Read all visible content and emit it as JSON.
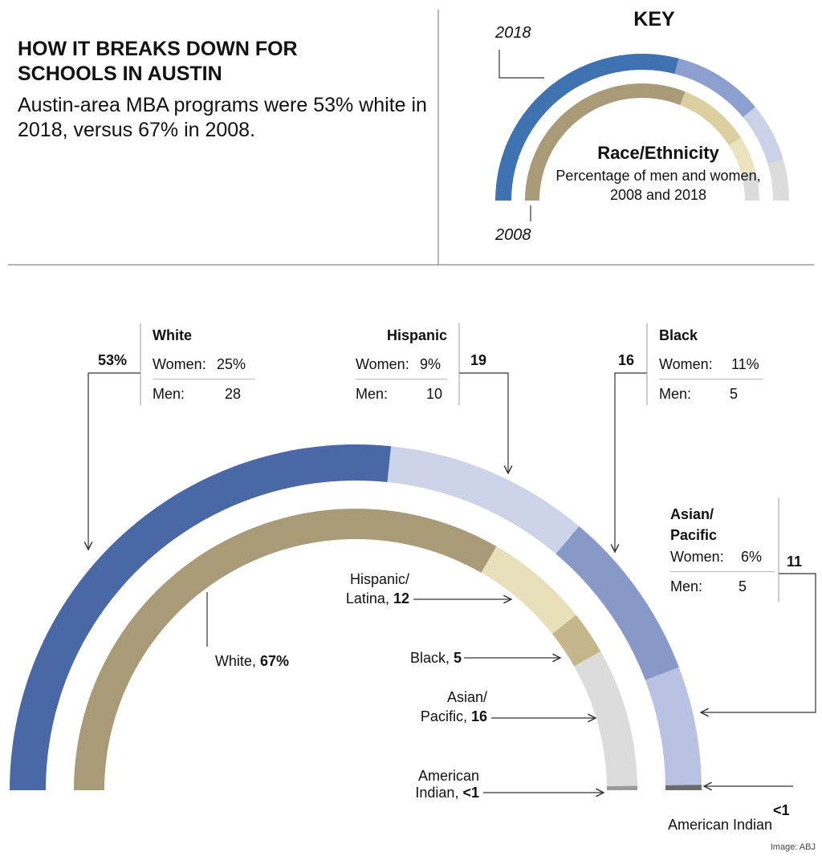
{
  "header": {
    "title": "HOW IT BREAKS DOWN FOR SCHOOLS IN AUSTIN",
    "subtitle": "Austin-area MBA programs were 53% white in 2018, versus 67% in 2008."
  },
  "key": {
    "title": "KEY",
    "heading": "Race/Ethnicity",
    "description": "Percentage of men and women, 2008 and 2018"
  },
  "chart_data": {
    "type": "semi-donut",
    "series": [
      {
        "name": "2018",
        "categories": [
          "White",
          "Hispanic",
          "Black",
          "Asian/ Pacific",
          "American Indian"
        ],
        "values": [
          53,
          19,
          16,
          11,
          0.5
        ],
        "value_labels": [
          "53%",
          "19",
          "16",
          "11",
          "<1"
        ],
        "colors": [
          "#4a67a6",
          "#cdd3e8",
          "#8899c8",
          "#b9c2e2",
          "#6b6b6b"
        ]
      },
      {
        "name": "2008",
        "categories": [
          "White",
          "Hispanic/ Latina",
          "Black",
          "Asian/ Pacific",
          "American Indian"
        ],
        "values": [
          67,
          12,
          5,
          16,
          0.5
        ],
        "value_labels": [
          "67%",
          "12",
          "5",
          "16",
          "<1"
        ],
        "colors": [
          "#a99b77",
          "#e8dfbb",
          "#c5b68b",
          "#dcdcdc",
          "#9a9a9a"
        ]
      }
    ],
    "breakdown": {
      "women_text": "Women:",
      "men_text": "Men:",
      "women": [
        25,
        9,
        11,
        6
      ],
      "women_labels": [
        "25%",
        "9%",
        "11%",
        "6%"
      ],
      "men": [
        28,
        10,
        5,
        5
      ]
    }
  },
  "credit": "Image: ABJ"
}
